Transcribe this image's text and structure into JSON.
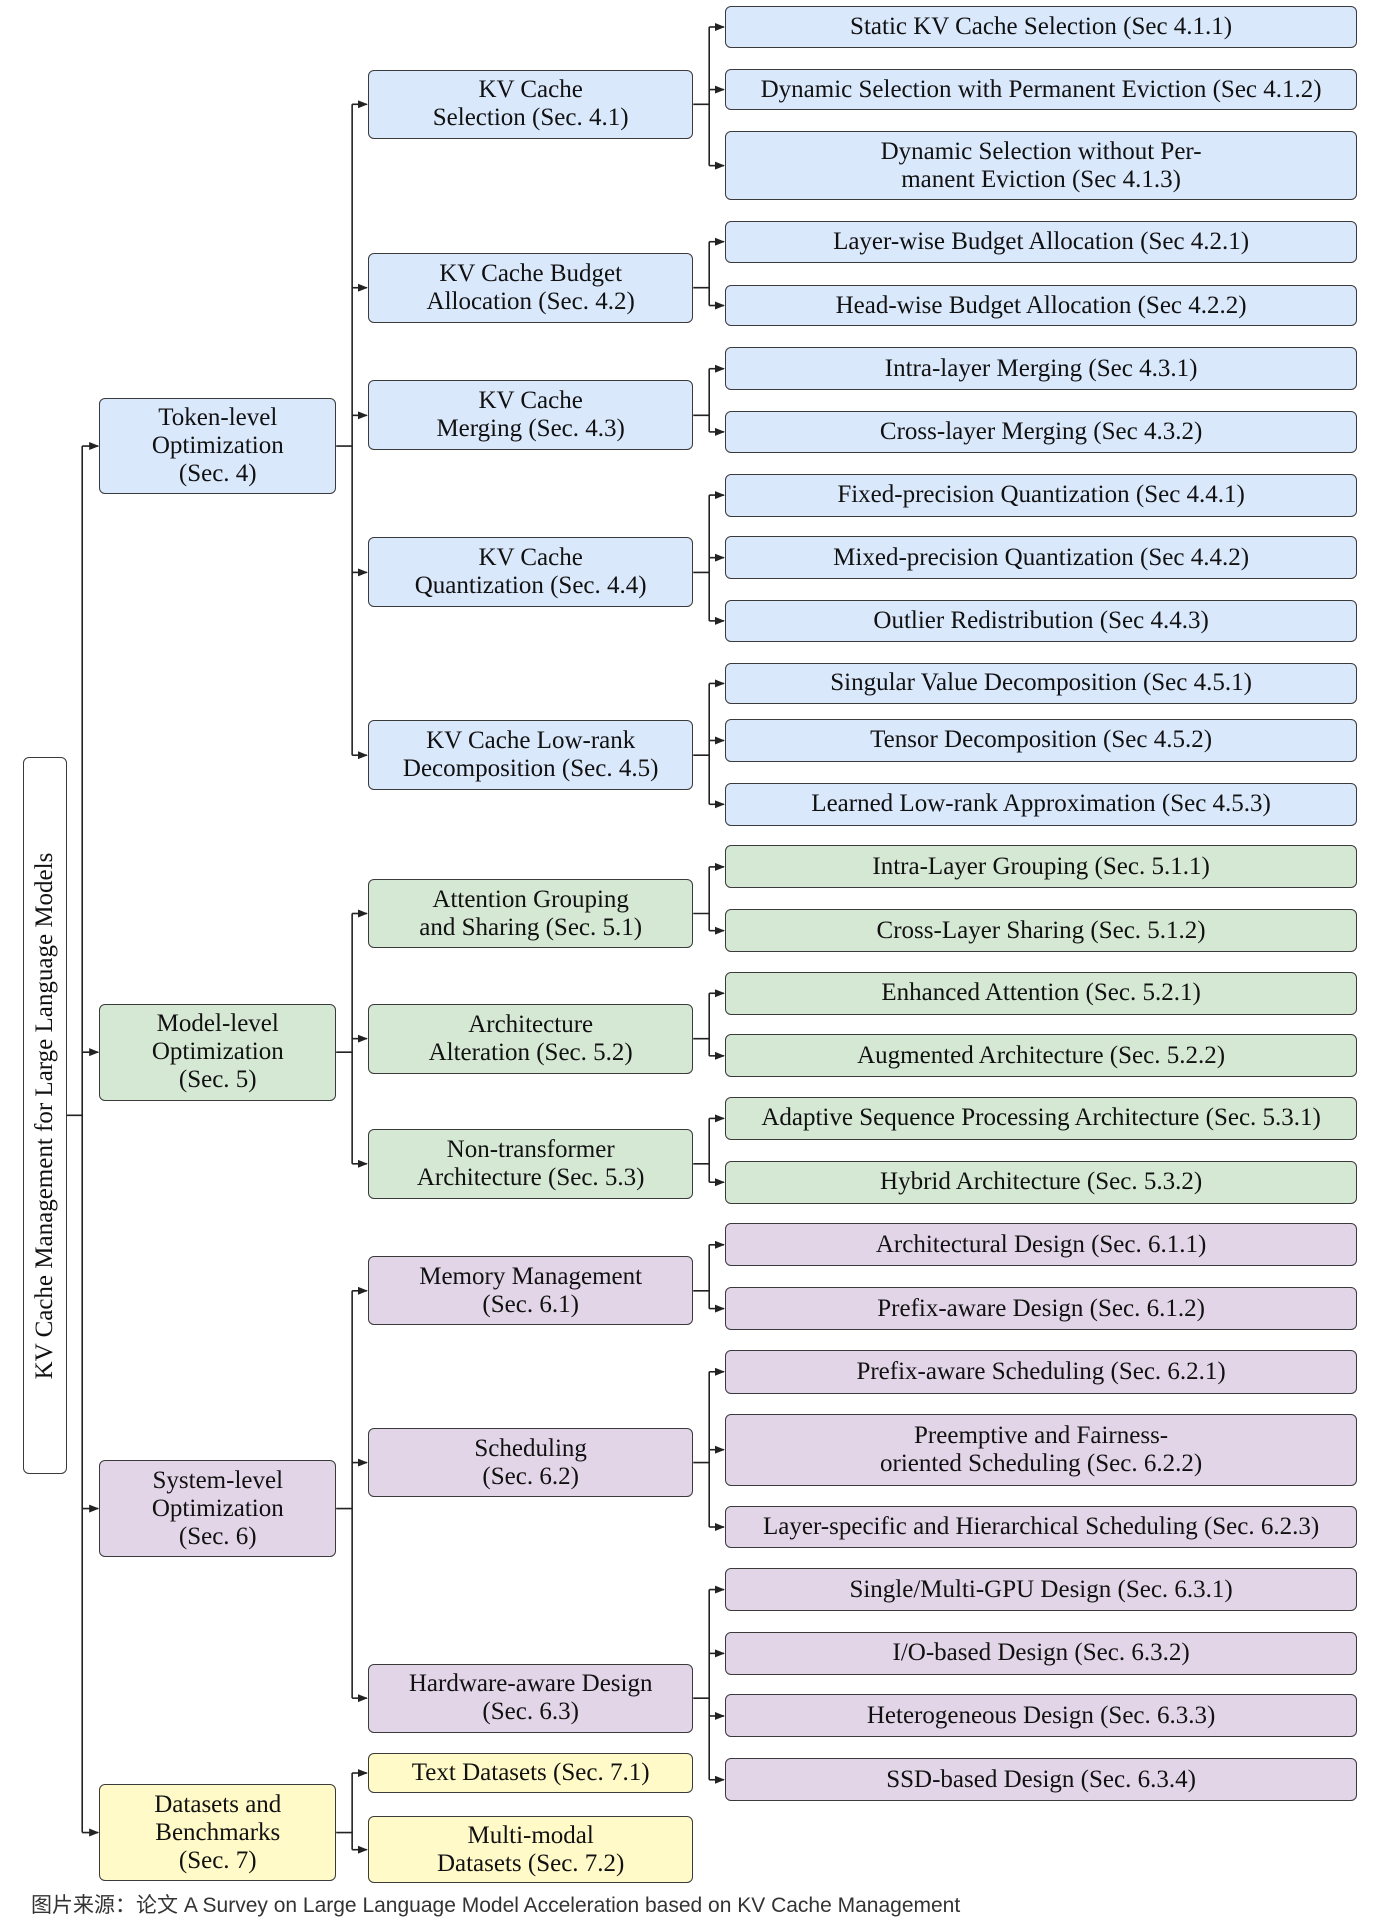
{
  "root": {
    "label": "KV Cache Management for Large Language Models"
  },
  "colors": {
    "token": "#dae8fc",
    "model": "#d5e8d4",
    "system": "#e1d5e7",
    "datasets": "#fffac8",
    "border": "#3a3a3a",
    "line": "#222222"
  },
  "categories": [
    {
      "label": "Token-level\nOptimization\n(Sec. 4)",
      "color_key": "token",
      "children": [
        {
          "label": "KV Cache\nSelection (Sec. 4.1)",
          "children": [
            "Static KV Cache Selection (Sec 4.1.1)",
            "Dynamic Selection with Permanent Eviction (Sec 4.1.2)",
            "Dynamic Selection without Per-\nmanent Eviction (Sec 4.1.3)"
          ]
        },
        {
          "label": "KV Cache Budget\nAllocation (Sec. 4.2)",
          "children": [
            "Layer-wise Budget Allocation (Sec 4.2.1)",
            "Head-wise Budget Allocation (Sec 4.2.2)"
          ]
        },
        {
          "label": "KV Cache\nMerging (Sec. 4.3)",
          "children": [
            "Intra-layer Merging (Sec 4.3.1)",
            "Cross-layer Merging (Sec 4.3.2)"
          ]
        },
        {
          "label": "KV Cache\nQuantization (Sec. 4.4)",
          "children": [
            "Fixed-precision Quantization (Sec 4.4.1)",
            "Mixed-precision Quantization (Sec 4.4.2)",
            "Outlier Redistribution (Sec 4.4.3)"
          ]
        },
        {
          "label": "KV Cache Low-rank\nDecomposition (Sec. 4.5)",
          "children": [
            "Singular Value Decomposition (Sec 4.5.1)",
            "Tensor Decomposition (Sec 4.5.2)",
            "Learned Low-rank Approximation (Sec 4.5.3)"
          ]
        }
      ]
    },
    {
      "label": "Model-level\nOptimization\n(Sec. 5)",
      "color_key": "model",
      "children": [
        {
          "label": "Attention Grouping\nand Sharing (Sec. 5.1)",
          "children": [
            "Intra-Layer Grouping (Sec. 5.1.1)",
            "Cross-Layer Sharing (Sec. 5.1.2)"
          ]
        },
        {
          "label": "Architecture\nAlteration (Sec. 5.2)",
          "children": [
            "Enhanced Attention (Sec. 5.2.1)",
            "Augmented Architecture (Sec. 5.2.2)"
          ]
        },
        {
          "label": "Non-transformer\nArchitecture (Sec. 5.3)",
          "children": [
            "Adaptive Sequence Processing Architecture (Sec. 5.3.1)",
            "Hybrid Architecture (Sec. 5.3.2)"
          ]
        }
      ]
    },
    {
      "label": "System-level\nOptimization\n(Sec. 6)",
      "color_key": "system",
      "children": [
        {
          "label": "Memory Management\n(Sec. 6.1)",
          "children": [
            "Architectural Design (Sec. 6.1.1)",
            "Prefix-aware Design (Sec. 6.1.2)"
          ]
        },
        {
          "label": "Scheduling\n(Sec. 6.2)",
          "children": [
            "Prefix-aware Scheduling (Sec. 6.2.1)",
            "Preemptive and Fairness-\noriented Scheduling (Sec. 6.2.2)",
            "Layer-specific and Hierarchical Scheduling (Sec. 6.2.3)"
          ]
        },
        {
          "label": "Hardware-aware Design\n(Sec. 6.3)",
          "children": [
            "Single/Multi-GPU Design (Sec. 6.3.1)",
            "I/O-based Design (Sec. 6.3.2)",
            "Heterogeneous Design (Sec. 6.3.3)",
            "SSD-based Design (Sec. 6.3.4)"
          ]
        }
      ]
    },
    {
      "label": "Datasets and\nBenchmarks\n(Sec. 7)",
      "color_key": "datasets",
      "children": [
        {
          "label": "Text Datasets (Sec. 7.1)",
          "children": []
        },
        {
          "label": "Multi-modal\nDatasets (Sec. 7.2)",
          "children": []
        }
      ]
    }
  ],
  "caption": "图片来源：论文 A Survey on Large Language Model Acceleration based on KV Cache Management"
}
